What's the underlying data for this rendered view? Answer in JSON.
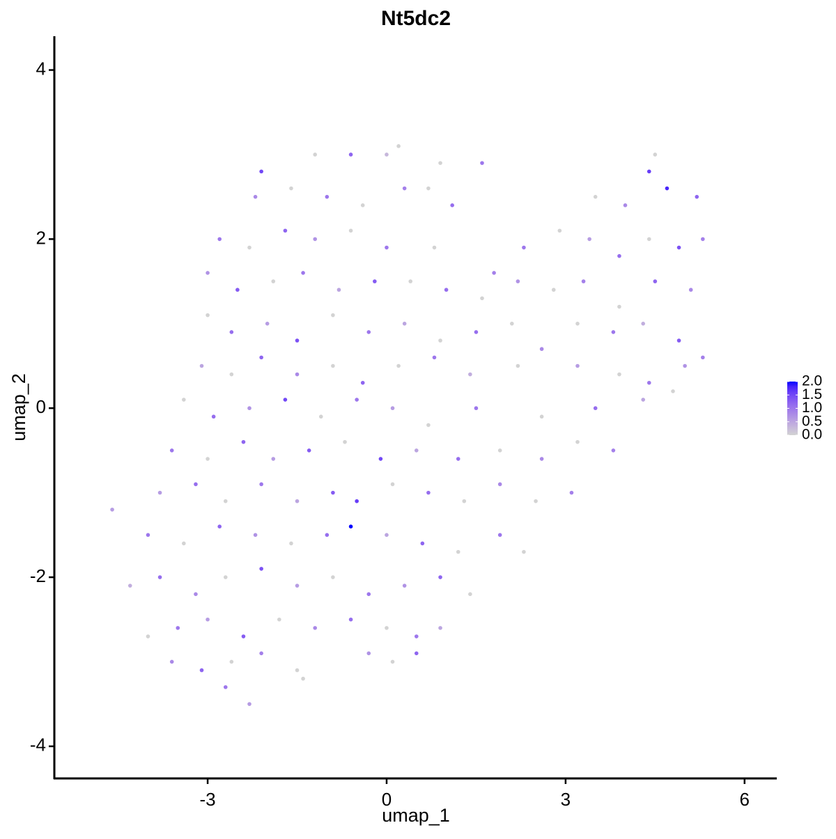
{
  "chart_data": {
    "type": "scatter",
    "title": "Nt5dc2",
    "x_label": "umap_1",
    "y_label": "umap_2",
    "xlim": [
      -5.57,
      6.54
    ],
    "ylim": [
      -4.38,
      4.4
    ],
    "xticks": [
      -3,
      0,
      3,
      6
    ],
    "yticks": [
      -4,
      -2,
      0,
      2,
      4
    ],
    "low_color": "#d3d3d3",
    "high_color": "#0000ff",
    "colorlim": [
      0,
      2.0
    ],
    "colorticks": [
      {
        "value": 0,
        "label": "0.0"
      },
      {
        "value": 0.5,
        "label": "0.5"
      },
      {
        "value": 1,
        "label": "1.0"
      },
      {
        "value": 1.5,
        "label": "1.5"
      },
      {
        "value": 2,
        "label": "2.0"
      }
    ],
    "x": [
      -1.2,
      -0.6,
      0,
      0.2,
      -2.1,
      0.9,
      1.6,
      4.5,
      4.4,
      -2.2,
      -1.6,
      -1,
      -0.4,
      0.3,
      0.7,
      1.1,
      3.5,
      4.0,
      4.7,
      5.2,
      -2.8,
      -2.3,
      -1.7,
      -1.2,
      -0.6,
      0,
      0.8,
      1.8,
      2.3,
      2.9,
      3.4,
      3.9,
      4.4,
      4.9,
      5.3,
      -3.0,
      -2.5,
      -1.9,
      -1.4,
      -0.8,
      -0.2,
      0.4,
      1.0,
      1.6,
      2.2,
      2.8,
      3.3,
      3.9,
      4.5,
      5.1,
      -3.0,
      -2.6,
      -2.0,
      -1.5,
      -0.9,
      -0.3,
      0.3,
      0.9,
      1.5,
      2.1,
      2.6,
      3.2,
      3.8,
      4.3,
      4.9,
      5.3,
      -3.1,
      -2.6,
      -2.1,
      -1.5,
      -0.9,
      -0.4,
      0.2,
      0.8,
      1.4,
      2.2,
      3.2,
      3.9,
      4.4,
      5.0,
      -3.4,
      -2.9,
      -2.3,
      -1.7,
      -1.1,
      -0.5,
      0.1,
      0.7,
      1.5,
      2.6,
      3.5,
      4.3,
      4.8,
      -3.6,
      -3.0,
      -2.4,
      -1.9,
      -1.3,
      -0.7,
      -0.1,
      0.5,
      1.2,
      1.9,
      2.6,
      3.2,
      3.8,
      -3.8,
      -3.2,
      -2.7,
      -2.1,
      -1.5,
      -0.9,
      -0.5,
      0.1,
      0.7,
      1.3,
      1.9,
      2.5,
      3.1,
      -4.6,
      -4.0,
      -3.4,
      -2.8,
      -2.2,
      -1.6,
      -1.0,
      -0.6,
      0,
      0.6,
      1.2,
      1.9,
      2.3,
      -4.3,
      -3.8,
      -3.2,
      -2.7,
      -2.1,
      -1.5,
      -0.9,
      -0.3,
      0.3,
      0.9,
      1.4,
      -4.0,
      -3.5,
      -3.0,
      -2.4,
      -1.8,
      -1.2,
      -0.6,
      0,
      0.5,
      0.9,
      -3.6,
      -3.1,
      -2.6,
      -2.1,
      -1.5,
      -0.3,
      0.1,
      0.5,
      -2.7,
      -2.3,
      -1.4
    ],
    "y": [
      3.0,
      3.0,
      3.0,
      3.1,
      2.8,
      2.9,
      2.9,
      3.0,
      2.8,
      2.5,
      2.6,
      2.5,
      2.4,
      2.6,
      2.6,
      2.4,
      2.5,
      2.4,
      2.6,
      2.5,
      2.0,
      1.9,
      2.1,
      2.0,
      2.1,
      1.9,
      1.9,
      1.6,
      1.9,
      2.1,
      2.0,
      1.8,
      2.0,
      1.9,
      2.0,
      1.6,
      1.4,
      1.5,
      1.6,
      1.4,
      1.5,
      1.5,
      1.4,
      1.3,
      1.5,
      1.4,
      1.5,
      1.2,
      1.5,
      1.4,
      1.1,
      0.9,
      1.0,
      0.8,
      1.1,
      0.9,
      1.0,
      0.8,
      0.9,
      1.0,
      0.7,
      1.0,
      0.9,
      1.0,
      0.8,
      0.6,
      0.5,
      0.4,
      0.6,
      0.4,
      0.5,
      0.3,
      0.5,
      0.6,
      0.4,
      0.5,
      0.5,
      0.4,
      0.3,
      0.5,
      0.1,
      -0.1,
      0.0,
      0.1,
      -0.1,
      0.1,
      0.0,
      -0.2,
      0.0,
      -0.1,
      0.0,
      0.1,
      0.2,
      -0.5,
      -0.6,
      -0.4,
      -0.6,
      -0.5,
      -0.4,
      -0.6,
      -0.5,
      -0.6,
      -0.5,
      -0.6,
      -0.4,
      -0.5,
      -1.0,
      -0.9,
      -1.1,
      -0.9,
      -1.1,
      -1.0,
      -1.1,
      -0.9,
      -1.0,
      -1.1,
      -0.9,
      -1.1,
      -1.0,
      -1.2,
      -1.5,
      -1.6,
      -1.4,
      -1.5,
      -1.6,
      -1.5,
      -1.4,
      -1.5,
      -1.6,
      -1.7,
      -1.5,
      -1.7,
      -2.1,
      -2.0,
      -2.2,
      -2.0,
      -1.9,
      -2.1,
      -2.0,
      -2.2,
      -2.1,
      -2.0,
      -2.2,
      -2.7,
      -2.6,
      -2.5,
      -2.7,
      -2.5,
      -2.6,
      -2.5,
      -2.6,
      -2.7,
      -2.6,
      -3.0,
      -3.1,
      -3.0,
      -2.9,
      -3.1,
      -2.9,
      -3.0,
      -2.9,
      -3.3,
      -3.5,
      -3.2
    ],
    "values": [
      0,
      1.2,
      0.3,
      0,
      1.5,
      0,
      1.0,
      0,
      1.6,
      0.8,
      0,
      1.0,
      0,
      0.9,
      0,
      1.1,
      0,
      0.8,
      1.8,
      1.2,
      1.0,
      0,
      1.2,
      0.7,
      0,
      1.0,
      0,
      0.9,
      1.0,
      0,
      0.6,
      1.1,
      0,
      1.4,
      0.9,
      0.7,
      1.3,
      0,
      1.0,
      0.5,
      1.3,
      0,
      1.1,
      0,
      0.7,
      0,
      0.9,
      0,
      1.2,
      0.8,
      0,
      1.1,
      0.6,
      1.4,
      0,
      1.0,
      0.5,
      0,
      1.1,
      0,
      0.8,
      0,
      1.0,
      0.4,
      1.3,
      0.9,
      0.5,
      0,
      1.2,
      0.8,
      0,
      1.2,
      0,
      1.0,
      0.4,
      0,
      0.6,
      0,
      1.0,
      0.7,
      0,
      1.1,
      0.7,
      1.5,
      0,
      1.0,
      0.6,
      0,
      1.0,
      0,
      1.1,
      0.5,
      0,
      1.0,
      0,
      1.2,
      0.6,
      1.3,
      0,
      1.5,
      0.5,
      1.1,
      0,
      0.8,
      0,
      0.9,
      0.6,
      1.1,
      0,
      1.0,
      0.5,
      1.3,
      1.6,
      0,
      1.1,
      0,
      0.8,
      0,
      0.9,
      0.6,
      1.0,
      0,
      1.2,
      0.7,
      0,
      1.1,
      2.0,
      0.5,
      1.2,
      0,
      1.0,
      0,
      0.4,
      1.1,
      0.8,
      0,
      1.4,
      0.6,
      0,
      1.0,
      0.7,
      1.2,
      0,
      0,
      1.0,
      0.6,
      1.3,
      0,
      0.8,
      1.1,
      0,
      1.0,
      0.5,
      0.8,
      1.2,
      0,
      0.9,
      0,
      0.7,
      0,
      1.2,
      1.0,
      0.6,
      0
    ]
  }
}
